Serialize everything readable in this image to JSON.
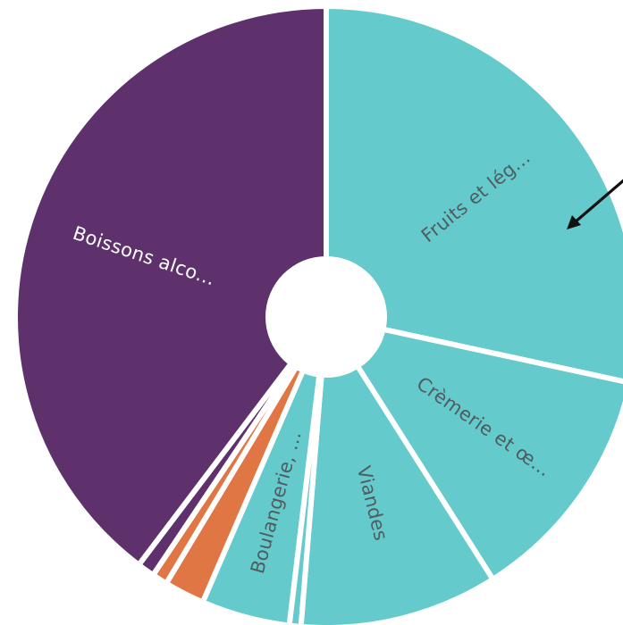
{
  "chart_data": {
    "type": "pie",
    "title": "",
    "slices": [
      {
        "label": "Fruits et lég...",
        "value": 28.4,
        "color": "#64cacb",
        "label_color": "#4f5d60"
      },
      {
        "label": "Crèmerie et œ...",
        "value": 12.6,
        "color": "#64cacb",
        "label_color": "#4f5d60"
      },
      {
        "label": "Viandes",
        "value": 10.3,
        "color": "#64cacb",
        "label_color": "#4f5d60"
      },
      {
        "label": "",
        "value": 0.6,
        "color": "#64cacb",
        "label_color": "#4f5d60"
      },
      {
        "label": "Boulangerie, ...",
        "value": 4.6,
        "color": "#64cacb",
        "label_color": "#4f5d60"
      },
      {
        "label": "",
        "value": 2.1,
        "color": "#e07644",
        "label_color": "#ffffff"
      },
      {
        "label": "",
        "value": 0.8,
        "color": "#e07644",
        "label_color": "#ffffff"
      },
      {
        "label": "",
        "value": 0.9,
        "color": "#5e316d",
        "label_color": "#ffffff"
      },
      {
        "label": "Boissons alco...",
        "value": 39.7,
        "color": "#5e316d",
        "label_color": "#ffffff"
      }
    ],
    "start_angle_deg": 0,
    "direction": "clockwise",
    "donut_hole": true,
    "annotation": {
      "type": "arrow",
      "points_to": "Fruits et lég..."
    }
  }
}
